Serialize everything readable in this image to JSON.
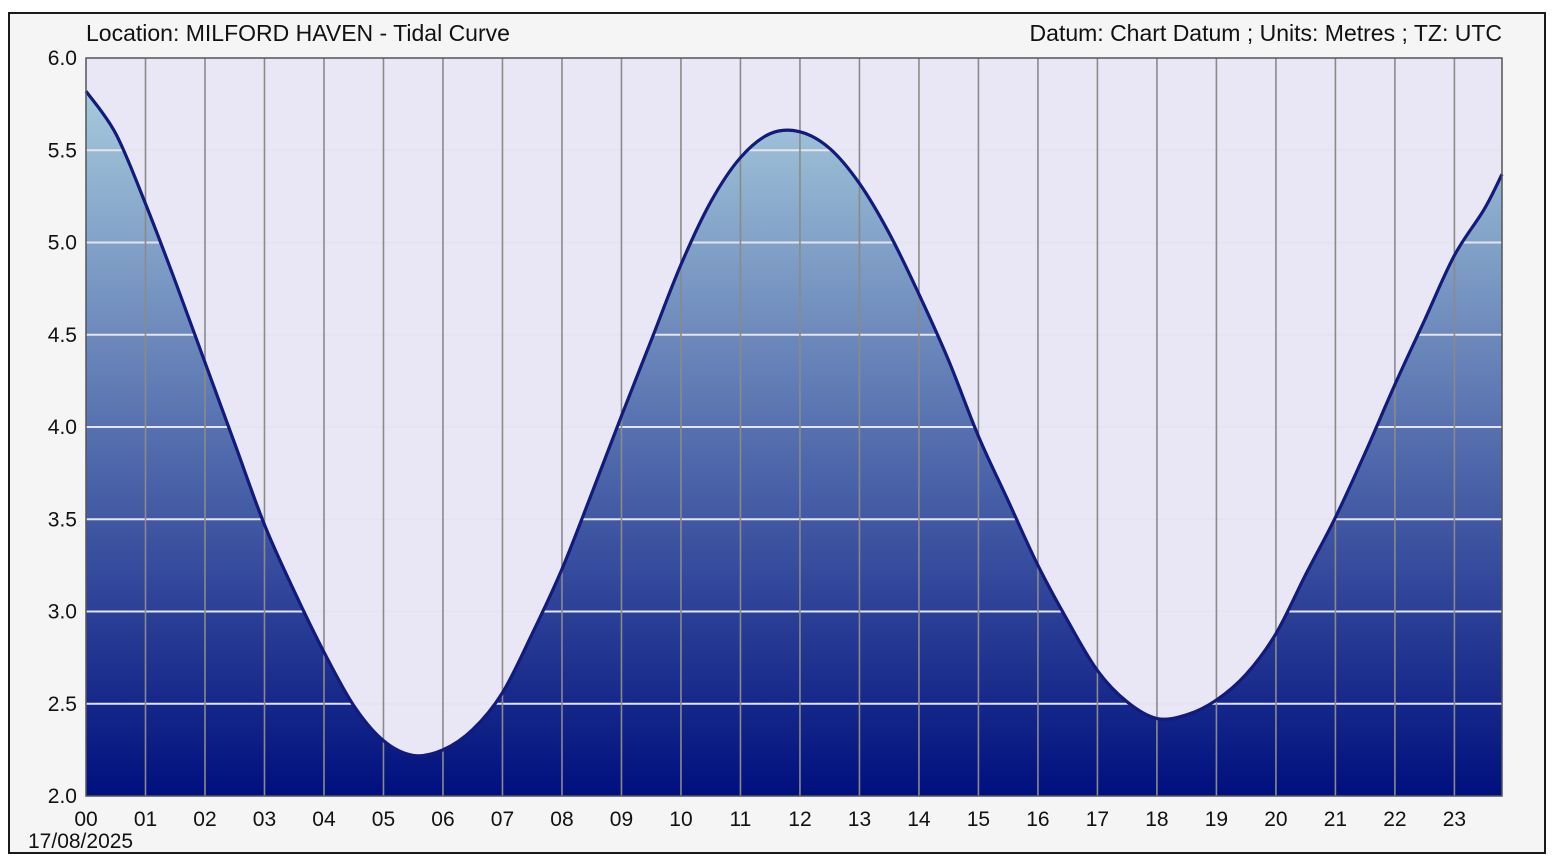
{
  "chart_data": {
    "type": "area",
    "title": "Location: MILFORD HAVEN - Tidal Curve",
    "subtitle": "Datum: Chart Datum ; Units: Metres ; TZ: UTC",
    "date_label": "17/08/2025",
    "xlabel": "",
    "ylabel": "",
    "xlim": [
      0,
      23.8
    ],
    "ylim": [
      2.0,
      6.0
    ],
    "x_ticks": [
      "00",
      "01",
      "02",
      "03",
      "04",
      "05",
      "06",
      "07",
      "08",
      "09",
      "10",
      "11",
      "12",
      "13",
      "14",
      "15",
      "16",
      "17",
      "18",
      "19",
      "20",
      "21",
      "22",
      "23"
    ],
    "y_ticks": [
      "2.0",
      "2.5",
      "3.0",
      "3.5",
      "4.0",
      "4.5",
      "5.0",
      "5.5",
      "6.0"
    ],
    "grid": true,
    "series": [
      {
        "x": [
          0,
          0.5,
          1,
          1.5,
          2,
          2.5,
          3,
          3.5,
          4,
          4.5,
          5,
          5.5,
          6,
          6.5,
          7,
          7.5,
          8,
          8.5,
          9,
          9.5,
          10,
          10.5,
          11,
          11.5,
          12,
          12.5,
          13,
          13.5,
          14,
          14.5,
          15,
          15.5,
          16,
          16.5,
          17,
          17.5,
          18,
          18.5,
          19,
          19.5,
          20,
          20.5,
          21,
          21.5,
          22,
          22.5,
          23,
          23.5,
          23.8
        ],
        "y": [
          5.82,
          5.59,
          5.21,
          4.79,
          4.35,
          3.91,
          3.47,
          3.11,
          2.78,
          2.49,
          2.3,
          2.22,
          2.25,
          2.36,
          2.56,
          2.88,
          3.23,
          3.64,
          4.06,
          4.47,
          4.88,
          5.22,
          5.46,
          5.59,
          5.6,
          5.51,
          5.32,
          5.05,
          4.72,
          4.36,
          3.95,
          3.6,
          3.25,
          2.95,
          2.68,
          2.51,
          2.42,
          2.44,
          2.52,
          2.66,
          2.88,
          3.2,
          3.51,
          3.86,
          4.23,
          4.58,
          4.93,
          5.18,
          5.37
        ]
      }
    ],
    "colors": {
      "plot_background": "#e9e7f6",
      "fill_top": "#a6cadc",
      "fill_bottom": "#000f7e",
      "line": "#121a7c",
      "grid_vertical": "#8a8a8a",
      "grid_horizontal": "#e4e4ee",
      "frame_background": "#f5f5f5"
    }
  }
}
